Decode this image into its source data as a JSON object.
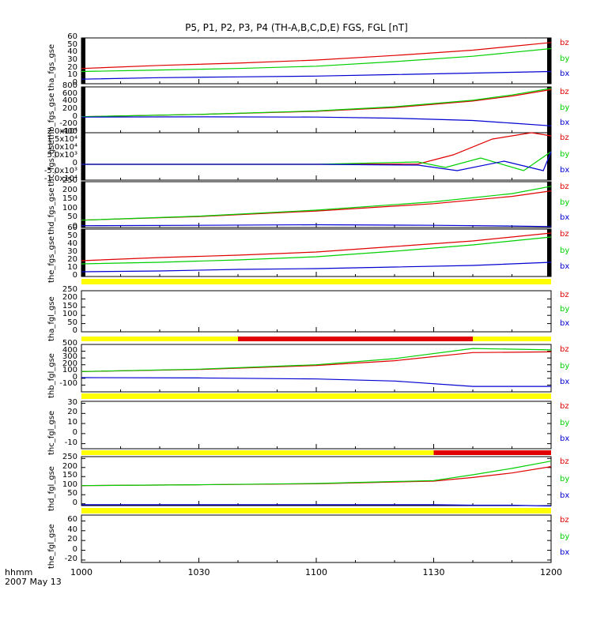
{
  "chart_data": {
    "type": "line",
    "title": "P5, P1, P2, P3, P4 (TH-A,B,C,D,E) FGS, FGL [nT]",
    "x_unit_label": "hhmm",
    "date_label": "2007 May 13",
    "x_range": [
      "10:00",
      "12:00"
    ],
    "x_ticks": [
      "1000",
      "1030",
      "1100",
      "1130",
      "1200"
    ],
    "legend_placement": "right of each panel",
    "colors": {
      "bz": "#e00000",
      "by": "#00d000",
      "bx": "#0000d0",
      "bar_ok": "#ffff00",
      "bar_flag": "#e00000",
      "edge_bar": "#000000"
    },
    "panels": [
      {
        "ylabel": "tha_fgs_gse",
        "ylim": [
          0,
          60
        ],
        "y_ticks": [
          "0",
          "10",
          "20",
          "30",
          "40",
          "50",
          "60"
        ],
        "legend": [
          "bz",
          "by",
          "bx"
        ],
        "series": [
          {
            "name": "bz",
            "x": [
              "10:00",
              "10:20",
              "10:40",
              "11:00",
              "11:20",
              "11:40",
              "12:00"
            ],
            "values": [
              20,
              24,
              27,
              31,
              37,
              44,
              54
            ]
          },
          {
            "name": "by",
            "x": [
              "10:00",
              "10:20",
              "10:40",
              "11:00",
              "11:20",
              "11:40",
              "12:00"
            ],
            "values": [
              16,
              18,
              20,
              23,
              29,
              36,
              46
            ]
          },
          {
            "name": "bx",
            "x": [
              "10:00",
              "10:20",
              "10:40",
              "11:00",
              "11:20",
              "11:40",
              "12:00"
            ],
            "values": [
              6,
              8,
              9,
              10,
              12,
              14,
              16
            ]
          }
        ]
      },
      {
        "ylabel": "thb_fgs_gse",
        "ylim": [
          -400,
          800
        ],
        "y_ticks": [
          "-400",
          "-200",
          "0",
          "200",
          "400",
          "600",
          "800"
        ],
        "legend": [
          "bz",
          "by",
          "bx"
        ],
        "series": [
          {
            "name": "bz",
            "x": [
              "10:00",
              "10:30",
              "11:00",
              "11:20",
              "11:40",
              "11:50",
              "12:00"
            ],
            "values": [
              20,
              80,
              160,
              260,
              430,
              560,
              730
            ]
          },
          {
            "name": "by",
            "x": [
              "10:00",
              "10:30",
              "11:00",
              "11:20",
              "11:40",
              "11:50",
              "12:00"
            ],
            "values": [
              20,
              80,
              170,
              280,
              450,
              590,
              760
            ]
          },
          {
            "name": "bx",
            "x": [
              "10:00",
              "10:30",
              "11:00",
              "11:20",
              "11:40",
              "11:50",
              "12:00"
            ],
            "values": [
              10,
              15,
              10,
              -20,
              -80,
              -150,
              -220
            ]
          }
        ]
      },
      {
        "ylabel": "thc_fgs_gse",
        "ylim": [
          -10000,
          20000
        ],
        "y_ticks": [
          "-1.0x10⁴",
          "-5.0x10³",
          "0",
          "5.0x10³",
          "1.0x10⁴",
          "1.5x10⁴",
          "2.0x10⁴"
        ],
        "legend": [
          "bz",
          "by",
          "bx"
        ],
        "series": [
          {
            "name": "bz",
            "x": [
              "10:00",
              "10:30",
              "11:00",
              "11:26",
              "11:35",
              "11:45",
              "11:55",
              "12:00"
            ],
            "values": [
              0,
              0,
              0,
              200,
              6000,
              16000,
              20000,
              18000
            ]
          },
          {
            "name": "by",
            "x": [
              "10:00",
              "10:30",
              "11:00",
              "11:26",
              "11:33",
              "11:42",
              "11:53",
              "12:00"
            ],
            "values": [
              0,
              0,
              0,
              1500,
              -2000,
              4000,
              -4000,
              8000
            ]
          },
          {
            "name": "bx",
            "x": [
              "10:00",
              "10:30",
              "11:00",
              "11:26",
              "11:36",
              "11:48",
              "11:58",
              "12:00"
            ],
            "values": [
              0,
              0,
              0,
              -500,
              -4000,
              2000,
              -4000,
              8000
            ]
          }
        ]
      },
      {
        "ylabel": "thd_fgs_gse",
        "ylim": [
          0,
          250
        ],
        "y_ticks": [
          "0",
          "50",
          "100",
          "150",
          "200",
          "250"
        ],
        "legend": [
          "bz",
          "by",
          "bx"
        ],
        "series": [
          {
            "name": "bz",
            "x": [
              "10:00",
              "10:30",
              "11:00",
              "11:30",
              "11:50",
              "12:00"
            ],
            "values": [
              40,
              60,
              90,
              130,
              170,
              200
            ]
          },
          {
            "name": "by",
            "x": [
              "10:00",
              "10:30",
              "11:00",
              "11:30",
              "11:50",
              "12:00"
            ],
            "values": [
              40,
              62,
              95,
              140,
              185,
              225
            ]
          },
          {
            "name": "bx",
            "x": [
              "10:00",
              "10:30",
              "11:00",
              "11:30",
              "11:50",
              "12:00"
            ],
            "values": [
              10,
              12,
              15,
              12,
              8,
              5
            ]
          }
        ]
      },
      {
        "ylabel": "the_fgs_gse",
        "ylim": [
          0,
          60
        ],
        "y_ticks": [
          "0",
          "10",
          "20",
          "30",
          "40",
          "50",
          "60"
        ],
        "legend": [
          "bz",
          "by",
          "bx"
        ],
        "series": [
          {
            "name": "bz",
            "x": [
              "10:00",
              "10:20",
              "10:40",
              "11:00",
              "11:20",
              "11:40",
              "12:00"
            ],
            "values": [
              20,
              24,
              27,
              31,
              38,
              45,
              55
            ]
          },
          {
            "name": "by",
            "x": [
              "10:00",
              "10:20",
              "10:40",
              "11:00",
              "11:20",
              "11:40",
              "12:00"
            ],
            "values": [
              16,
              18,
              21,
              25,
              32,
              40,
              50
            ]
          },
          {
            "name": "bx",
            "x": [
              "10:00",
              "10:20",
              "10:40",
              "11:00",
              "11:20",
              "11:40",
              "12:00"
            ],
            "values": [
              6,
              7,
              9,
              10,
              12,
              14,
              18
            ]
          }
        ]
      },
      {
        "ylabel": "tha_fgl_gse",
        "ylim": [
          0,
          250
        ],
        "y_ticks": [
          "0",
          "50",
          "100",
          "150",
          "200",
          "250"
        ],
        "legend": [
          "bz",
          "by",
          "bx"
        ],
        "series": []
      },
      {
        "ylabel": "thb_fgl_gse",
        "ylim": [
          -200,
          500
        ],
        "y_ticks": [
          "-100",
          "0",
          "100",
          "200",
          "300",
          "400",
          "500"
        ],
        "legend": [
          "bz",
          "by",
          "bx"
        ],
        "series": [
          {
            "name": "bz",
            "x": [
              "10:00",
              "10:30",
              "11:00",
              "11:20",
              "11:40",
              "12:00"
            ],
            "values": [
              100,
              130,
              190,
              260,
              380,
              390
            ]
          },
          {
            "name": "by",
            "x": [
              "10:00",
              "10:30",
              "11:00",
              "11:20",
              "11:40",
              "12:00"
            ],
            "values": [
              100,
              135,
              200,
              290,
              440,
              420
            ]
          },
          {
            "name": "bx",
            "x": [
              "10:00",
              "10:30",
              "11:00",
              "11:20",
              "11:40",
              "12:00"
            ],
            "values": [
              10,
              5,
              -10,
              -40,
              -120,
              -120
            ]
          }
        ]
      },
      {
        "ylabel": "thc_fgl_gse",
        "ylim": [
          -15,
          32
        ],
        "y_ticks": [
          "-10",
          "0",
          "10",
          "20",
          "30"
        ],
        "legend": [
          "bz",
          "by",
          "bx"
        ],
        "series": []
      },
      {
        "ylabel": "thd_fgl_gse",
        "ylim": [
          -10,
          260
        ],
        "y_ticks": [
          "0",
          "50",
          "100",
          "150",
          "200",
          "250"
        ],
        "legend": [
          "bz",
          "by",
          "bx"
        ],
        "series": [
          {
            "name": "bz",
            "x": [
              "10:00",
              "10:30",
              "11:00",
              "11:30",
              "11:40",
              "11:50",
              "12:00"
            ],
            "values": [
              100,
              105,
              110,
              125,
              145,
              170,
              205
            ]
          },
          {
            "name": "by",
            "x": [
              "10:00",
              "10:30",
              "11:00",
              "11:30",
              "11:40",
              "11:50",
              "12:00"
            ],
            "values": [
              100,
              105,
              112,
              128,
              160,
              195,
              235
            ]
          },
          {
            "name": "bx",
            "x": [
              "10:00",
              "10:30",
              "11:00",
              "11:30",
              "11:40",
              "11:50",
              "12:00"
            ],
            "values": [
              -5,
              -5,
              -5,
              -5,
              -8,
              -8,
              -12
            ]
          }
        ]
      },
      {
        "ylabel": "the_fgl_gse",
        "ylim": [
          -25,
          72
        ],
        "y_ticks": [
          "-20",
          "0",
          "20",
          "40",
          "60"
        ],
        "legend": [
          "bz",
          "by",
          "bx"
        ],
        "series": []
      }
    ],
    "status_bars": [
      {
        "after_panel": 4,
        "segments": [
          {
            "from": "10:00",
            "to": "12:00",
            "state": "ok"
          }
        ]
      },
      {
        "after_panel": 5,
        "segments": [
          {
            "from": "10:00",
            "to": "10:40",
            "state": "ok"
          },
          {
            "from": "10:40",
            "to": "11:40",
            "state": "flag"
          },
          {
            "from": "11:40",
            "to": "12:00",
            "state": "ok"
          }
        ]
      },
      {
        "after_panel": 6,
        "segments": [
          {
            "from": "10:00",
            "to": "12:00",
            "state": "ok"
          }
        ]
      },
      {
        "after_panel": 7,
        "segments": [
          {
            "from": "10:00",
            "to": "11:30",
            "state": "ok"
          },
          {
            "from": "11:30",
            "to": "12:00",
            "state": "flag"
          }
        ]
      },
      {
        "after_panel": 8,
        "segments": [
          {
            "from": "10:00",
            "to": "12:00",
            "state": "ok"
          }
        ]
      }
    ]
  }
}
